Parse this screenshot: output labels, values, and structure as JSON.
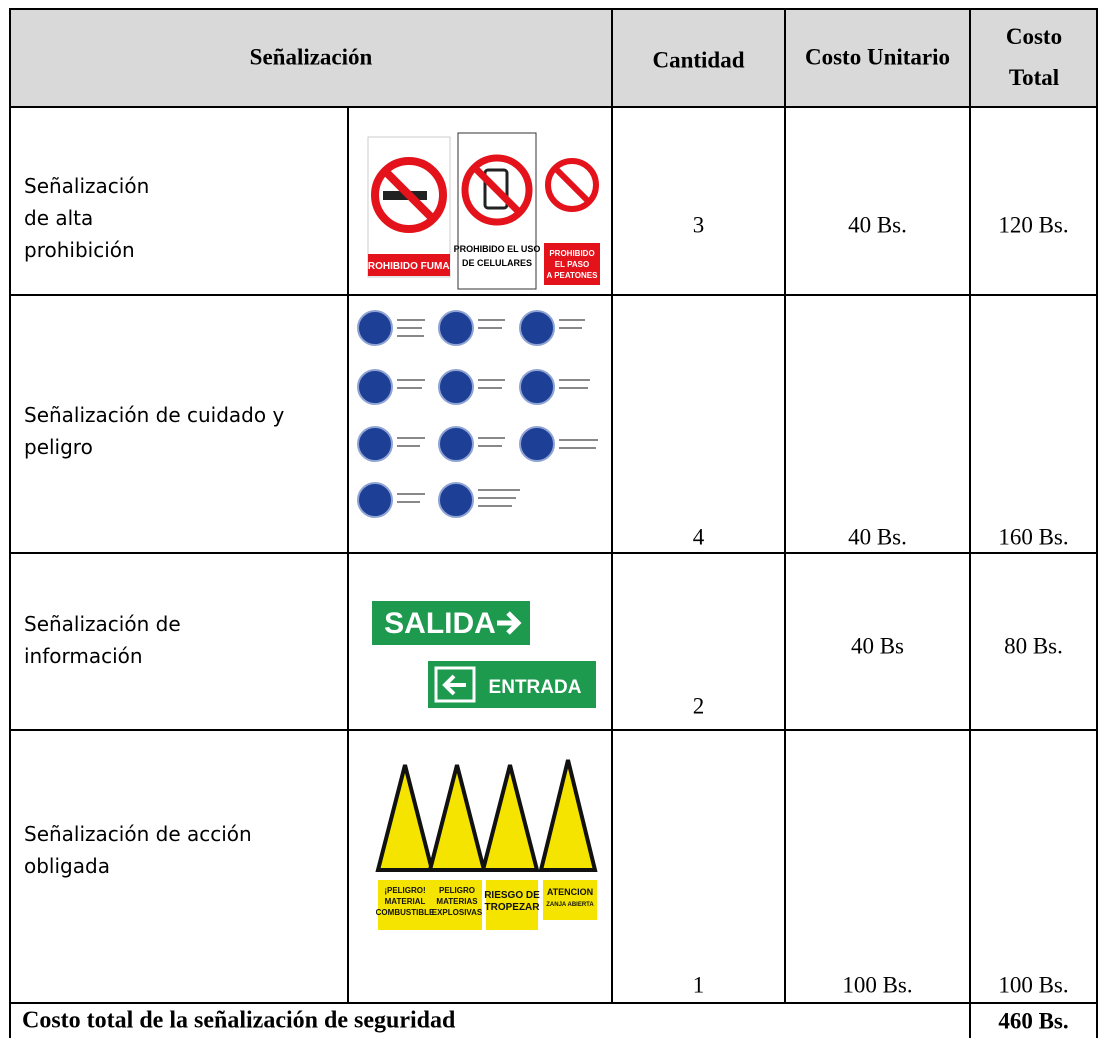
{
  "table": {
    "header": [
      "Señalización",
      "Cantidad",
      "Costo Unitario",
      "Costo Total"
    ],
    "rows": [
      {
        "label": "Señalización de alta prohibición",
        "quantity": 3,
        "unit_cost": "40 Bs.",
        "total_cost": "120 Bs.",
        "sign_texts": [
          "PROHIBIDO FUMAR",
          "PROHIBIDO EL USO",
          "DE CELULARES",
          "PROHIBIDO",
          "EL PASO",
          "A PEATONES"
        ]
      },
      {
        "label": "Señalización de cuidado y peligro",
        "quantity": 4,
        "unit_cost": "40 Bs.",
        "total_cost": "160 Bs."
      },
      {
        "label": "Señalización de información",
        "quantity": 2,
        "unit_cost": "40 Bs",
        "total_cost": "80 Bs.",
        "sign_texts": [
          "SALIDA",
          "ENTRADA"
        ]
      },
      {
        "label": "Señalización de acción obligada",
        "quantity": 1,
        "unit_cost": "100 Bs.",
        "total_cost": "100 Bs.",
        "sign_texts": [
          "¡PELIGRO!",
          "MATERIAL",
          "COMBUSTIBLE",
          "PELIGRO",
          "MATERIAS",
          "EXPLOSIVAS",
          "RIESGO DE",
          "TROPEZAR",
          "ATENCION",
          "ZANJA ABIERTA"
        ]
      }
    ],
    "footer": {
      "label": "Costo total de la señalización de seguridad",
      "value": "460 Bs."
    }
  }
}
